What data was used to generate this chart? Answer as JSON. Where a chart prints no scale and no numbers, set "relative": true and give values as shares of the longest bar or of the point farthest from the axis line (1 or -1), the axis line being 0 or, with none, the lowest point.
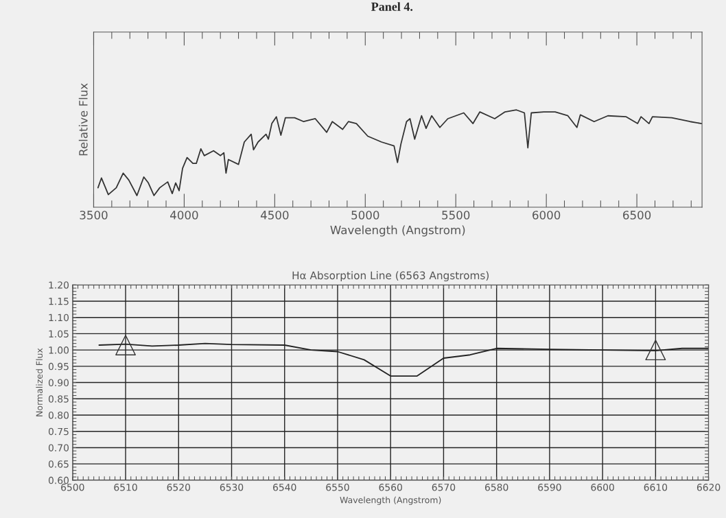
{
  "chart_data": [
    {
      "type": "line",
      "title": "Panel 4.",
      "xlabel": "Wavelength (Angstrom)",
      "ylabel": "Relative Flux",
      "relative": true,
      "tick_labels": "x",
      "xlim": [
        3500,
        6860
      ],
      "xticks": [
        3500,
        4000,
        4500,
        5000,
        5500,
        6000,
        6500
      ],
      "series": [
        {
          "color": "#333333",
          "x": [
            3524,
            3543,
            3581,
            3625,
            3663,
            3694,
            3739,
            3777,
            3802,
            3833,
            3865,
            3909,
            3934,
            3953,
            3972,
            3991,
            4016,
            4048,
            4067,
            4092,
            4111,
            4162,
            4200,
            4219,
            4231,
            4244,
            4300,
            4332,
            4370,
            4383,
            4408,
            4452,
            4465,
            4484,
            4509,
            4534,
            4559,
            4610,
            4660,
            4724,
            4787,
            4818,
            4875,
            4907,
            4951,
            5014,
            5090,
            5159,
            5178,
            5197,
            5228,
            5247,
            5273,
            5311,
            5336,
            5367,
            5412,
            5456,
            5544,
            5595,
            5633,
            5715,
            5772,
            5835,
            5879,
            5898,
            5917,
            5986,
            6049,
            6119,
            6169,
            6188,
            6264,
            6340,
            6441,
            6504,
            6523,
            6567,
            6586,
            6693,
            6794,
            6857
          ],
          "values": [
            0.2,
            0.3,
            0.13,
            0.2,
            0.35,
            0.28,
            0.12,
            0.31,
            0.25,
            0.12,
            0.2,
            0.26,
            0.14,
            0.25,
            0.17,
            0.4,
            0.51,
            0.45,
            0.45,
            0.6,
            0.53,
            0.58,
            0.53,
            0.56,
            0.35,
            0.49,
            0.44,
            0.67,
            0.75,
            0.59,
            0.67,
            0.75,
            0.7,
            0.86,
            0.93,
            0.74,
            0.92,
            0.92,
            0.88,
            0.91,
            0.77,
            0.88,
            0.8,
            0.88,
            0.86,
            0.73,
            0.67,
            0.63,
            0.46,
            0.65,
            0.88,
            0.91,
            0.7,
            0.94,
            0.81,
            0.94,
            0.82,
            0.91,
            0.97,
            0.86,
            0.98,
            0.91,
            0.98,
            1.0,
            0.97,
            0.61,
            0.97,
            0.98,
            0.98,
            0.94,
            0.82,
            0.95,
            0.88,
            0.94,
            0.93,
            0.86,
            0.93,
            0.86,
            0.93,
            0.92,
            0.88,
            0.86
          ]
        }
      ]
    },
    {
      "type": "line",
      "title": "Hα Absorption Line (6563 Angstroms)",
      "xlabel": "Wavelength (Angstrom)",
      "ylabel": "Normalized Flux",
      "grid": true,
      "xlim": [
        6500,
        6620
      ],
      "xticks": [
        6500,
        6510,
        6520,
        6530,
        6540,
        6550,
        6560,
        6570,
        6580,
        6590,
        6600,
        6610,
        6620
      ],
      "ylim": [
        0.6,
        1.2
      ],
      "yticks": [
        {
          "value": 0.6,
          "label": "0.60"
        },
        0.65,
        {
          "value": 0.7,
          "label": "0.70"
        },
        0.75,
        {
          "value": 0.8,
          "label": "0.80"
        },
        0.85,
        {
          "value": 0.9,
          "label": "0.90"
        },
        0.95,
        {
          "value": 1.0,
          "label": "1.00"
        },
        1.05,
        {
          "value": 1.1,
          "label": "1.10"
        },
        1.15,
        {
          "value": 1.2,
          "label": "1.20"
        }
      ],
      "series": [
        {
          "color": "#222222",
          "x": [
            6505,
            6510,
            6515,
            6520,
            6525,
            6530,
            6540,
            6545,
            6550,
            6555,
            6560,
            6565,
            6570,
            6575,
            6580,
            6590,
            6600,
            6610,
            6615,
            6620
          ],
          "values": [
            1.015,
            1.018,
            1.012,
            1.015,
            1.02,
            1.017,
            1.015,
            1.0,
            0.995,
            0.97,
            0.92,
            0.92,
            0.975,
            0.985,
            1.005,
            1.002,
            1.0,
            0.998,
            1.005,
            1.005
          ]
        },
        {
          "type": "scatter",
          "marker": "triangle",
          "color": "#333333",
          "x": [
            6510,
            6610
          ],
          "values": [
            1.015,
            1.0
          ]
        }
      ]
    }
  ]
}
